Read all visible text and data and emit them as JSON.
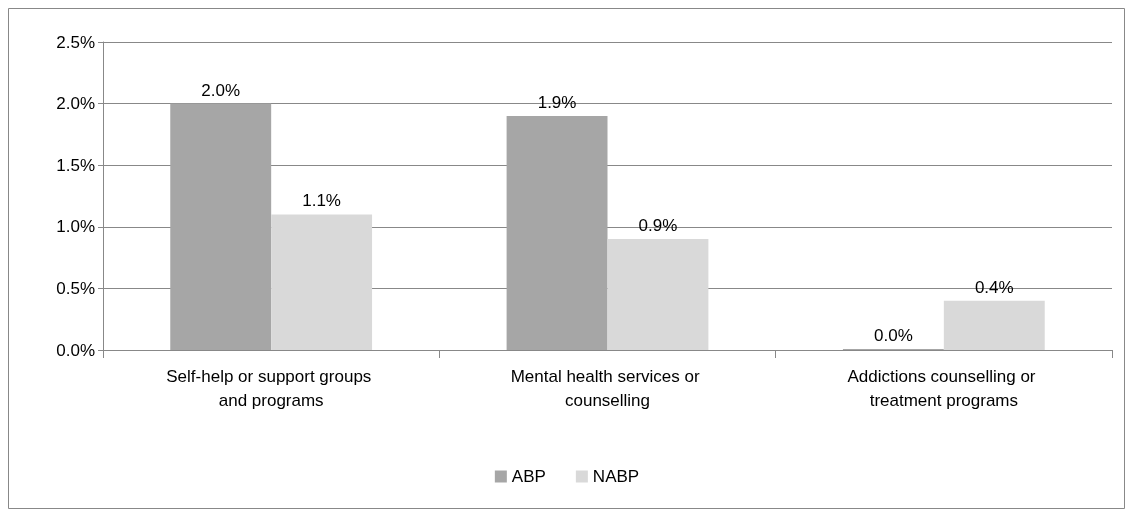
{
  "chart_data": {
    "type": "bar",
    "categories": [
      "Self-help or support groups and programs",
      "Mental health services or counselling",
      "Addictions counselling or treatment programs"
    ],
    "series": [
      {
        "name": "ABP",
        "color": "#a6a6a6",
        "values": [
          2.0,
          1.9,
          0.0
        ],
        "value_labels": [
          "2.0%",
          "1.9%",
          "0.0%"
        ]
      },
      {
        "name": "NABP",
        "color": "#d9d9d9",
        "values": [
          1.1,
          0.9,
          0.4
        ],
        "value_labels": [
          "1.1%",
          "0.9%",
          "0.4%"
        ]
      }
    ],
    "ylim": [
      0,
      2.5
    ],
    "yticks": [
      {
        "value": 0,
        "label": "0.0%"
      },
      {
        "value": 0.5,
        "label": "0.5%"
      },
      {
        "value": 1,
        "label": "1.0%"
      },
      {
        "value": 1.5,
        "label": "1.5%"
      },
      {
        "value": 2,
        "label": "2.0%"
      },
      {
        "value": 2.5,
        "label": "2.5%"
      }
    ],
    "grid": "y",
    "legend": "bottom"
  }
}
